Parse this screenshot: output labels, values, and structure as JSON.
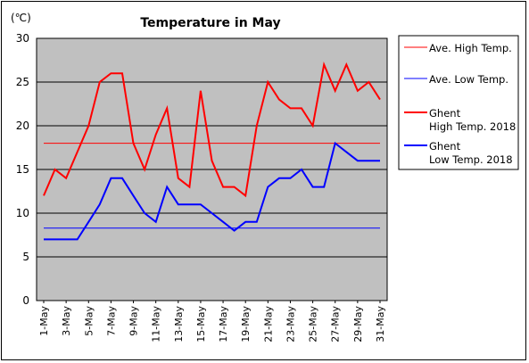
{
  "chart_data": {
    "type": "line",
    "title": "Temperature in May",
    "unit_label": "(℃)",
    "ylim": [
      0,
      30
    ],
    "y_ticks": [
      "0",
      "5",
      "10",
      "15",
      "20",
      "25",
      "30"
    ],
    "grid": true,
    "legend_position": "right",
    "categories": [
      "1-May",
      "2-May",
      "3-May",
      "4-May",
      "5-May",
      "6-May",
      "7-May",
      "8-May",
      "9-May",
      "10-May",
      "11-May",
      "12-May",
      "13-May",
      "14-May",
      "15-May",
      "16-May",
      "17-May",
      "18-May",
      "19-May",
      "20-May",
      "21-May",
      "22-May",
      "23-May",
      "24-May",
      "25-May",
      "26-May",
      "27-May",
      "28-May",
      "29-May",
      "30-May",
      "31-May"
    ],
    "x_tick_labels": [
      "1-May",
      "3-May",
      "5-May",
      "7-May",
      "9-May",
      "11-May",
      "13-May",
      "15-May",
      "17-May",
      "19-May",
      "21-May",
      "23-May",
      "25-May",
      "27-May",
      "29-May",
      "31-May"
    ],
    "series": [
      {
        "name": "Ave. High Temp.",
        "color": "#ff0000",
        "width": 1,
        "values": [
          18,
          18,
          18,
          18,
          18,
          18,
          18,
          18,
          18,
          18,
          18,
          18,
          18,
          18,
          18,
          18,
          18,
          18,
          18,
          18,
          18,
          18,
          18,
          18,
          18,
          18,
          18,
          18,
          18,
          18,
          18
        ]
      },
      {
        "name": "Ave. Low Temp.",
        "color": "#0000ff",
        "width": 1,
        "values": [
          8.3,
          8.3,
          8.3,
          8.3,
          8.3,
          8.3,
          8.3,
          8.3,
          8.3,
          8.3,
          8.3,
          8.3,
          8.3,
          8.3,
          8.3,
          8.3,
          8.3,
          8.3,
          8.3,
          8.3,
          8.3,
          8.3,
          8.3,
          8.3,
          8.3,
          8.3,
          8.3,
          8.3,
          8.3,
          8.3,
          8.3
        ]
      },
      {
        "name": "Ghent High Temp. 2018",
        "legend_lines": [
          "Ghent",
          "High Temp. 2018"
        ],
        "color": "#ff0000",
        "width": 2,
        "values": [
          12,
          15,
          14,
          17,
          20,
          25,
          26,
          26,
          18,
          15,
          19,
          22,
          14,
          13,
          24,
          16,
          13,
          13,
          12,
          20,
          25,
          23,
          22,
          22,
          20,
          27,
          24,
          27,
          24,
          25,
          23
        ]
      },
      {
        "name": "Ghent Low Temp. 2018",
        "legend_lines": [
          "Ghent",
          "Low Temp. 2018"
        ],
        "color": "#0000ff",
        "width": 2,
        "values": [
          7,
          7,
          7,
          7,
          9,
          11,
          14,
          14,
          12,
          10,
          9,
          13,
          11,
          11,
          11,
          10,
          9,
          8,
          9,
          9,
          13,
          14,
          14,
          15,
          13,
          13,
          18,
          17,
          16,
          16,
          16
        ]
      }
    ]
  }
}
